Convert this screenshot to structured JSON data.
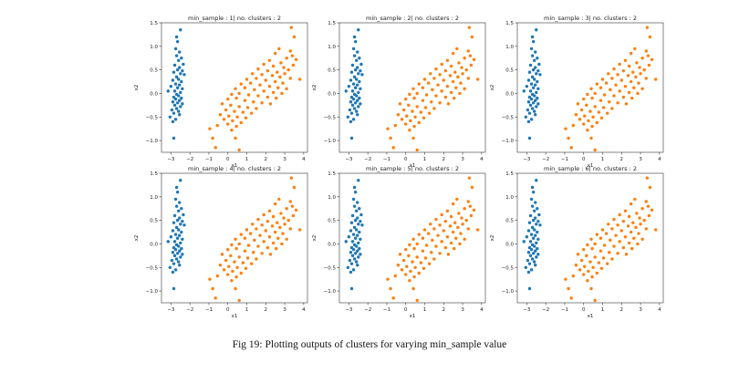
{
  "caption": "Fig 19: Plotting outputs of clusters for varying min_sample value",
  "chart_data": [
    {
      "type": "scatter",
      "title": "min_sample : 1| no. clusters : 2",
      "xlabel": "x1",
      "ylabel": "x2",
      "xlim": [
        -3.5,
        4.2
      ],
      "ylim": [
        -1.25,
        1.5
      ],
      "xticks": [
        -3,
        -2,
        -1,
        0,
        1,
        2,
        3,
        4
      ],
      "yticks": [
        -1.0,
        -0.5,
        0.0,
        0.5,
        1.0,
        1.5
      ],
      "series_colors": [
        "#1f77b4",
        "#ff7f0e"
      ]
    },
    {
      "type": "scatter",
      "title": "min_sample : 2| no. clusters : 2",
      "xlabel": "x1",
      "ylabel": "x2",
      "xlim": [
        -3.5,
        4.2
      ],
      "ylim": [
        -1.25,
        1.5
      ],
      "xticks": [
        -3,
        -2,
        -1,
        0,
        1,
        2,
        3,
        4
      ],
      "yticks": [
        -1.0,
        -0.5,
        0.0,
        0.5,
        1.0,
        1.5
      ],
      "series_colors": [
        "#1f77b4",
        "#ff7f0e"
      ]
    },
    {
      "type": "scatter",
      "title": "min_sample : 3| no. clusters : 2",
      "xlabel": "x1",
      "ylabel": "x2",
      "xlim": [
        -3.5,
        4.2
      ],
      "ylim": [
        -1.25,
        1.5
      ],
      "xticks": [
        -3,
        -2,
        -1,
        0,
        1,
        2,
        3,
        4
      ],
      "yticks": [
        -1.0,
        -0.5,
        0.0,
        0.5,
        1.0,
        1.5
      ],
      "series_colors": [
        "#1f77b4",
        "#ff7f0e"
      ]
    },
    {
      "type": "scatter",
      "title": "min_sample : 4| no. clusters : 2",
      "xlabel": "x1",
      "ylabel": "x2",
      "xlim": [
        -3.5,
        4.2
      ],
      "ylim": [
        -1.25,
        1.5
      ],
      "xticks": [
        -3,
        -2,
        -1,
        0,
        1,
        2,
        3,
        4
      ],
      "yticks": [
        -1.0,
        -0.5,
        0.0,
        0.5,
        1.0,
        1.5
      ],
      "series_colors": [
        "#1f77b4",
        "#ff7f0e"
      ]
    },
    {
      "type": "scatter",
      "title": "min_sample : 5| no. clusters : 2",
      "xlabel": "x1",
      "ylabel": "x2",
      "xlim": [
        -3.5,
        4.2
      ],
      "ylim": [
        -1.25,
        1.5
      ],
      "xticks": [
        -3,
        -2,
        -1,
        0,
        1,
        2,
        3,
        4
      ],
      "yticks": [
        -1.0,
        -0.5,
        0.0,
        0.5,
        1.0,
        1.5
      ],
      "series_colors": [
        "#1f77b4",
        "#ff7f0e"
      ]
    },
    {
      "type": "scatter",
      "title": "min_sample : 6| no. clusters : 2",
      "xlabel": "x1",
      "ylabel": "x2",
      "xlim": [
        -3.5,
        4.2
      ],
      "ylim": [
        -1.25,
        1.5
      ],
      "xticks": [
        -3,
        -2,
        -1,
        0,
        1,
        2,
        3,
        4
      ],
      "yticks": [
        -1.0,
        -0.5,
        0.0,
        0.5,
        1.0,
        1.5
      ],
      "series_colors": [
        "#1f77b4",
        "#ff7f0e"
      ]
    }
  ],
  "points": {
    "cluster_0": [
      [
        -2.5,
        1.35
      ],
      [
        -2.7,
        1.2
      ],
      [
        -2.65,
        1.1
      ],
      [
        -2.75,
        0.95
      ],
      [
        -2.55,
        0.88
      ],
      [
        -2.7,
        0.8
      ],
      [
        -2.45,
        0.75
      ],
      [
        -2.6,
        0.7
      ],
      [
        -2.35,
        0.62
      ],
      [
        -2.8,
        0.6
      ],
      [
        -2.55,
        0.55
      ],
      [
        -2.65,
        0.5
      ],
      [
        -2.4,
        0.48
      ],
      [
        -2.85,
        0.45
      ],
      [
        -2.5,
        0.42
      ],
      [
        -2.3,
        0.4
      ],
      [
        -2.7,
        0.35
      ],
      [
        -2.6,
        0.3
      ],
      [
        -2.9,
        0.28
      ],
      [
        -2.45,
        0.25
      ],
      [
        -2.75,
        0.2
      ],
      [
        -2.55,
        0.18
      ],
      [
        -3.0,
        0.15
      ],
      [
        -2.65,
        0.12
      ],
      [
        -2.4,
        0.1
      ],
      [
        -2.8,
        0.05
      ],
      [
        -2.5,
        0.02
      ],
      [
        -2.7,
        -0.02
      ],
      [
        -3.15,
        0.05
      ],
      [
        -2.6,
        -0.05
      ],
      [
        -2.85,
        -0.08
      ],
      [
        -2.45,
        -0.1
      ],
      [
        -2.75,
        -0.12
      ],
      [
        -2.55,
        -0.15
      ],
      [
        -2.9,
        -0.18
      ],
      [
        -2.65,
        -0.2
      ],
      [
        -2.4,
        -0.22
      ],
      [
        -2.8,
        -0.25
      ],
      [
        -2.5,
        -0.28
      ],
      [
        -2.7,
        -0.32
      ],
      [
        -2.95,
        -0.35
      ],
      [
        -2.6,
        -0.38
      ],
      [
        -2.85,
        -0.42
      ],
      [
        -2.55,
        -0.45
      ],
      [
        -3.05,
        -0.5
      ],
      [
        -2.75,
        -0.55
      ],
      [
        -2.9,
        -0.6
      ],
      [
        -2.85,
        -0.95
      ]
    ],
    "cluster_1": [
      [
        3.35,
        1.4
      ],
      [
        3.5,
        1.2
      ],
      [
        2.7,
        0.95
      ],
      [
        3.3,
        0.9
      ],
      [
        3.4,
        0.8
      ],
      [
        2.5,
        0.85
      ],
      [
        3.1,
        0.75
      ],
      [
        3.6,
        0.72
      ],
      [
        2.2,
        0.7
      ],
      [
        2.8,
        0.65
      ],
      [
        3.45,
        0.6
      ],
      [
        1.9,
        0.62
      ],
      [
        2.4,
        0.58
      ],
      [
        2.95,
        0.55
      ],
      [
        3.2,
        0.5
      ],
      [
        1.6,
        0.52
      ],
      [
        2.1,
        0.48
      ],
      [
        2.6,
        0.45
      ],
      [
        3.0,
        0.42
      ],
      [
        1.3,
        0.42
      ],
      [
        1.8,
        0.4
      ],
      [
        2.35,
        0.38
      ],
      [
        2.75,
        0.35
      ],
      [
        3.3,
        0.32
      ],
      [
        3.8,
        0.3
      ],
      [
        1.0,
        0.3
      ],
      [
        1.5,
        0.32
      ],
      [
        2.0,
        0.28
      ],
      [
        2.5,
        0.25
      ],
      [
        2.9,
        0.22
      ],
      [
        0.7,
        0.2
      ],
      [
        1.2,
        0.22
      ],
      [
        1.7,
        0.18
      ],
      [
        2.2,
        0.15
      ],
      [
        2.65,
        0.12
      ],
      [
        3.1,
        0.1
      ],
      [
        0.4,
        0.1
      ],
      [
        0.9,
        0.12
      ],
      [
        1.4,
        0.08
      ],
      [
        1.9,
        0.05
      ],
      [
        2.4,
        0.02
      ],
      [
        2.85,
        0.0
      ],
      [
        0.2,
        -0.02
      ],
      [
        0.6,
        0.0
      ],
      [
        1.1,
        -0.03
      ],
      [
        1.6,
        -0.05
      ],
      [
        2.1,
        -0.08
      ],
      [
        2.55,
        -0.1
      ],
      [
        0.0,
        -0.12
      ],
      [
        0.45,
        -0.1
      ],
      [
        0.9,
        -0.15
      ],
      [
        1.35,
        -0.18
      ],
      [
        1.8,
        -0.2
      ],
      [
        2.25,
        -0.22
      ],
      [
        -0.3,
        -0.22
      ],
      [
        0.15,
        -0.25
      ],
      [
        0.6,
        -0.28
      ],
      [
        1.05,
        -0.3
      ],
      [
        1.5,
        -0.32
      ],
      [
        -0.1,
        -0.35
      ],
      [
        0.35,
        -0.38
      ],
      [
        0.8,
        -0.4
      ],
      [
        1.25,
        -0.42
      ],
      [
        -0.4,
        -0.45
      ],
      [
        0.05,
        -0.48
      ],
      [
        0.5,
        -0.5
      ],
      [
        0.95,
        -0.52
      ],
      [
        -0.2,
        -0.55
      ],
      [
        0.25,
        -0.58
      ],
      [
        0.7,
        -0.62
      ],
      [
        0.0,
        -0.65
      ],
      [
        0.45,
        -0.7
      ],
      [
        -0.55,
        -0.68
      ],
      [
        0.2,
        -0.78
      ],
      [
        -0.95,
        -0.75
      ],
      [
        -0.8,
        -0.95
      ],
      [
        0.4,
        -0.95
      ],
      [
        -0.65,
        -1.15
      ],
      [
        0.6,
        -1.2
      ]
    ]
  }
}
